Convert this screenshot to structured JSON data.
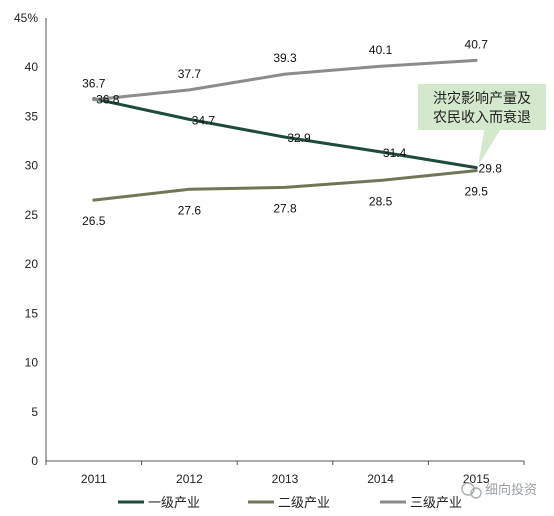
{
  "chart_data": {
    "type": "line",
    "categories": [
      "2011",
      "2012",
      "2013",
      "2014",
      "2015"
    ],
    "series": [
      {
        "name": "一级产业",
        "values": [
          36.8,
          34.7,
          32.9,
          31.4,
          29.8
        ],
        "color": "#1f4b3a",
        "label_offset": "right"
      },
      {
        "name": "二级产业",
        "values": [
          26.5,
          27.6,
          27.8,
          28.5,
          29.5
        ],
        "color": "#6f7758",
        "label_offset": "below"
      },
      {
        "name": "三级产业",
        "values": [
          36.7,
          37.7,
          39.3,
          40.1,
          40.7
        ],
        "color": "#8c8c8c",
        "label_offset": "above"
      }
    ],
    "yaxis": {
      "ticks": [
        "0",
        "5",
        "10",
        "15",
        "20",
        "25",
        "30",
        "35",
        "40",
        "45%"
      ],
      "ylim": [
        0,
        45
      ]
    },
    "legend": {
      "placement": "bottom"
    },
    "grid": false,
    "annotation": {
      "lines": [
        "洪灾影响产量及",
        "农民收入而衰退"
      ],
      "fill": "#d4e9cc"
    }
  },
  "watermark": {
    "icon": "wechat-icon",
    "text": "细向投资"
  }
}
